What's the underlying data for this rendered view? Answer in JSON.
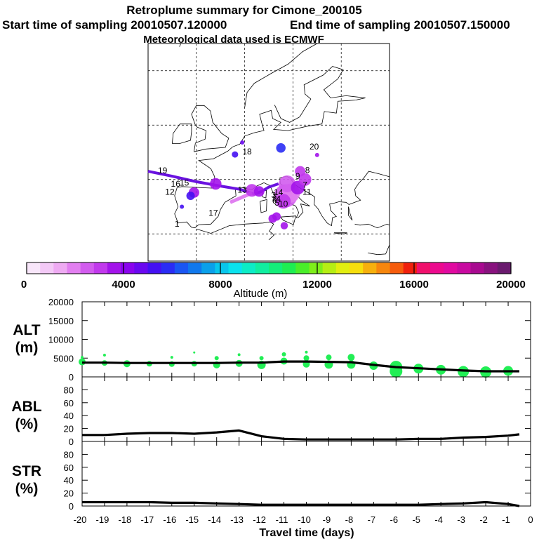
{
  "header": {
    "title": "Retroplume summary for Cimone_200105",
    "start_label": "Start time of sampling 20010507.120000",
    "end_label": "End time of sampling 20010507.150000",
    "met_label": "Meteorological data used is ECMWF"
  },
  "colors": {
    "track": "#6a12e0",
    "alt_dots": "#22ee55",
    "line": "#000000",
    "grid": "#000000",
    "coast": "#000000"
  },
  "colorbar": {
    "label": "Altitude (m)",
    "ticks": [
      "0",
      "4000",
      "8000",
      "12000",
      "16000",
      "20000"
    ],
    "range": [
      0,
      20000
    ],
    "swatches": [
      "#f8e6fa",
      "#f3c9f6",
      "#eeaaf2",
      "#e27ff0",
      "#d25cee",
      "#c139ec",
      "#a313ea",
      "#8a04ee",
      "#6a08f0",
      "#4410f2",
      "#2a2cf4",
      "#1a56f2",
      "#1078ec",
      "#0aa0ea",
      "#08c6ec",
      "#0ae2ee",
      "#0cecc6",
      "#10eea0",
      "#14ee7a",
      "#1eee52",
      "#4aee2a",
      "#7eee1a",
      "#b6ee14",
      "#e2ee10",
      "#f6de0c",
      "#f6b00c",
      "#f6860c",
      "#f65c0c",
      "#f0200c",
      "#f0106c",
      "#ec0a8e",
      "#e00aa0",
      "#c80aa0",
      "#a80a90",
      "#88127e",
      "#6a1a6e"
    ]
  },
  "map": {
    "numbers": [
      "1",
      "2",
      "3",
      "4",
      "5",
      "6",
      "7",
      "8",
      "9",
      "10",
      "11",
      "12",
      "13",
      "14",
      "15",
      "16",
      "17",
      "18",
      "19",
      "20"
    ],
    "blobs": [
      {
        "lon": 13.5,
        "lat": 42.0,
        "alt": 2500,
        "size": 22
      },
      {
        "lon": 14.5,
        "lat": 42.5,
        "alt": 2200,
        "size": 18
      },
      {
        "lon": 13.8,
        "lat": 44.2,
        "alt": 2400,
        "size": 16
      },
      {
        "lon": 13.0,
        "lat": 41.0,
        "alt": 2800,
        "size": 14
      },
      {
        "lon": 6.5,
        "lat": 43.0,
        "alt": 3200,
        "size": 12
      },
      {
        "lon": 8.0,
        "lat": 42.8,
        "alt": 3800,
        "size": 10
      },
      {
        "lon": 16.0,
        "lat": 43.5,
        "alt": 3600,
        "size": 13
      },
      {
        "lon": 17.5,
        "lat": 45.0,
        "alt": 3200,
        "size": 12
      },
      {
        "lon": 16.5,
        "lat": 46.5,
        "alt": 3000,
        "size": 10
      },
      {
        "lon": -1.0,
        "lat": 44.2,
        "alt": 3400,
        "size": 11
      },
      {
        "lon": -5.5,
        "lat": 42.6,
        "alt": 3800,
        "size": 10
      },
      {
        "lon": -6.2,
        "lat": 42.0,
        "alt": 5200,
        "size": 8
      },
      {
        "lon": 10.8,
        "lat": 37.8,
        "alt": 3800,
        "size": 8
      },
      {
        "lon": 11.6,
        "lat": 38.2,
        "alt": 3600,
        "size": 8
      },
      {
        "lon": 13.2,
        "lat": 36.5,
        "alt": 3400,
        "size": 7
      },
      {
        "lon": 3.0,
        "lat": 49.6,
        "alt": 5300,
        "size": 6
      },
      {
        "lon": 12.5,
        "lat": 50.8,
        "alt": 5700,
        "size": 9
      },
      {
        "lon": 4.5,
        "lat": 51.8,
        "alt": 4600,
        "size": 4
      },
      {
        "lon": 20.0,
        "lat": 49.5,
        "alt": 3600,
        "size": 4
      },
      {
        "lon": -8.0,
        "lat": 40.0,
        "alt": 5100,
        "size": 4
      }
    ]
  },
  "chart_data": [
    {
      "type": "line",
      "name": "ALT",
      "ylabel": "ALT\n(m)",
      "ylabel_line1": "ALT",
      "ylabel_line2": "(m)",
      "ylim": [
        0,
        20000
      ],
      "yticks": [
        "0",
        "5000",
        "10000",
        "15000",
        "20000"
      ],
      "x": [
        -20,
        -19,
        -18,
        -17,
        -16,
        -15,
        -14,
        -13,
        -12,
        -11,
        -10,
        -9,
        -8,
        -7,
        -6,
        -5,
        -4,
        -3,
        -2,
        -1,
        -0.5
      ],
      "values": [
        3800,
        3800,
        3700,
        3700,
        3700,
        3700,
        3700,
        3800,
        3800,
        4100,
        4100,
        4000,
        3900,
        3200,
        2600,
        2300,
        2000,
        1700,
        1500,
        1500,
        1500
      ],
      "dots": [
        {
          "x": -20,
          "y": 4000,
          "r": 5
        },
        {
          "x": -20,
          "y": 5200,
          "r": 2
        },
        {
          "x": -19,
          "y": 3700,
          "r": 4
        },
        {
          "x": -19,
          "y": 5800,
          "r": 2
        },
        {
          "x": -18,
          "y": 3500,
          "r": 5
        },
        {
          "x": -17,
          "y": 3500,
          "r": 4
        },
        {
          "x": -16,
          "y": 3400,
          "r": 4
        },
        {
          "x": -16,
          "y": 5200,
          "r": 2
        },
        {
          "x": -15,
          "y": 3500,
          "r": 4
        },
        {
          "x": -15,
          "y": 6500,
          "r": 1.5
        },
        {
          "x": -14,
          "y": 3200,
          "r": 5
        },
        {
          "x": -14,
          "y": 5000,
          "r": 3
        },
        {
          "x": -13,
          "y": 3600,
          "r": 5
        },
        {
          "x": -13,
          "y": 5900,
          "r": 2
        },
        {
          "x": -12,
          "y": 3200,
          "r": 6
        },
        {
          "x": -12,
          "y": 5000,
          "r": 3
        },
        {
          "x": -11,
          "y": 4200,
          "r": 5
        },
        {
          "x": -11,
          "y": 6000,
          "r": 3
        },
        {
          "x": -10,
          "y": 3400,
          "r": 5
        },
        {
          "x": -10,
          "y": 5000,
          "r": 4
        },
        {
          "x": -10,
          "y": 6600,
          "r": 2
        },
        {
          "x": -9,
          "y": 3300,
          "r": 6
        },
        {
          "x": -9,
          "y": 5200,
          "r": 4
        },
        {
          "x": -8,
          "y": 3300,
          "r": 6
        },
        {
          "x": -8,
          "y": 5200,
          "r": 5
        },
        {
          "x": -7,
          "y": 3000,
          "r": 6
        },
        {
          "x": -6,
          "y": 2600,
          "r": 9
        },
        {
          "x": -6,
          "y": 1500,
          "r": 9
        },
        {
          "x": -5,
          "y": 2200,
          "r": 7
        },
        {
          "x": -4,
          "y": 1900,
          "r": 7
        },
        {
          "x": -3,
          "y": 1400,
          "r": 8
        },
        {
          "x": -2,
          "y": 1300,
          "r": 8
        },
        {
          "x": -1,
          "y": 1600,
          "r": 7
        }
      ]
    },
    {
      "type": "line",
      "name": "ABL",
      "ylabel_line1": "ABL",
      "ylabel_line2": "(%)",
      "ylim": [
        0,
        100
      ],
      "yticks": [
        "0",
        "20",
        "40",
        "60",
        "80"
      ],
      "x": [
        -20,
        -19,
        -18,
        -17,
        -16,
        -15,
        -14,
        -13,
        -12,
        -11,
        -10,
        -9,
        -8,
        -7,
        -6,
        -5,
        -4,
        -3,
        -2,
        -1,
        -0.5
      ],
      "values": [
        10,
        10,
        12,
        13,
        13,
        12,
        14,
        17,
        8,
        4,
        3,
        3,
        3,
        3,
        3,
        4,
        4,
        6,
        7,
        9,
        11
      ]
    },
    {
      "type": "line",
      "name": "STR",
      "ylabel_line1": "STR",
      "ylabel_line2": "(%)",
      "ylim": [
        0,
        100
      ],
      "yticks": [
        "0",
        "20",
        "40",
        "60",
        "80"
      ],
      "x": [
        -20,
        -19,
        -18,
        -17,
        -16,
        -15,
        -14,
        -13,
        -12,
        -11,
        -10,
        -9,
        -8,
        -7,
        -6,
        -5,
        -4,
        -3,
        -2,
        -1,
        -0.5
      ],
      "values": [
        6,
        6,
        6,
        6,
        5,
        5,
        4,
        3,
        2,
        2,
        2,
        2,
        2,
        2,
        2,
        2,
        3,
        4,
        6,
        3,
        0
      ],
      "xlabel": "Travel time (days)",
      "xticks": [
        "-20",
        "-19",
        "-18",
        "-17",
        "-16",
        "-15",
        "-14",
        "-13",
        "-12",
        "-11",
        "-10",
        "-9",
        "-8",
        "-7",
        "-6",
        "-5",
        "-4",
        "-3",
        "-2",
        "-1",
        "0"
      ],
      "xlim": [
        -20,
        0
      ]
    }
  ]
}
